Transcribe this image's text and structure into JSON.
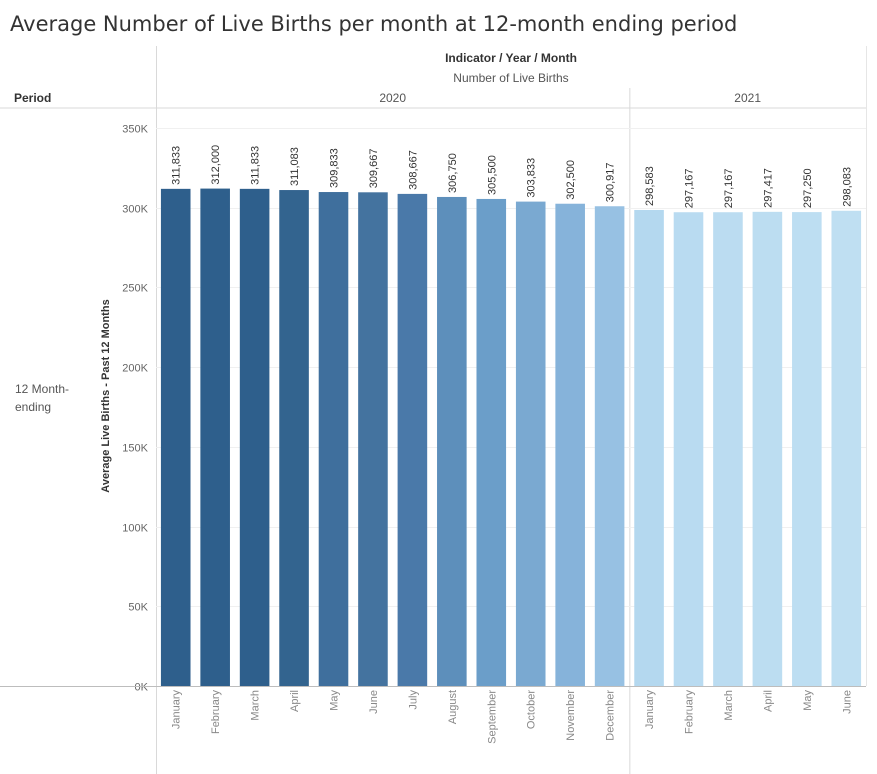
{
  "title": "Average Number of Live Births per month at 12-month ending period",
  "header": {
    "indicator_label": "Indicator / Year / Month",
    "measure_label": "Number of Live Births",
    "period_label": "Period",
    "row_label": "12 Month-ending"
  },
  "chart_data": {
    "type": "bar",
    "ylabel": "Average Live Births - Past 12 Months",
    "ylim": [
      0,
      350000
    ],
    "yticks": [
      0,
      50000,
      100000,
      150000,
      200000,
      250000,
      300000,
      350000
    ],
    "ytick_labels": [
      "0K",
      "50K",
      "100K",
      "150K",
      "200K",
      "250K",
      "300K",
      "350K"
    ],
    "grid": true,
    "year_groups": [
      {
        "year": "2020",
        "months": 12
      },
      {
        "year": "2021",
        "months": 6
      }
    ],
    "categories": [
      "January",
      "February",
      "March",
      "April",
      "May",
      "June",
      "July",
      "August",
      "September",
      "October",
      "November",
      "December",
      "January",
      "February",
      "March",
      "April",
      "May",
      "June"
    ],
    "values": [
      311833,
      312000,
      311833,
      311083,
      309833,
      309667,
      308667,
      306750,
      305500,
      303833,
      302500,
      300917,
      298583,
      297167,
      297167,
      297417,
      297250,
      298083
    ],
    "value_labels": [
      "311,833",
      "312,000",
      "311,833",
      "311,083",
      "309,833",
      "309,667",
      "308,667",
      "306,750",
      "305,500",
      "303,833",
      "302,500",
      "300,917",
      "298,583",
      "297,167",
      "297,167",
      "297,417",
      "297,250",
      "298,083"
    ],
    "colors": [
      "#2e5f8c",
      "#2e5f8c",
      "#2e5f8c",
      "#33648f",
      "#3f6f9d",
      "#44739f",
      "#4a79a9",
      "#5d8fbb",
      "#6b9ec9",
      "#7aa9d1",
      "#86b3da",
      "#97c1e3",
      "#b4d8ef",
      "#b9dbf1",
      "#bbdcf1",
      "#bcddf1",
      "#bddef2",
      "#bfdff2"
    ]
  }
}
